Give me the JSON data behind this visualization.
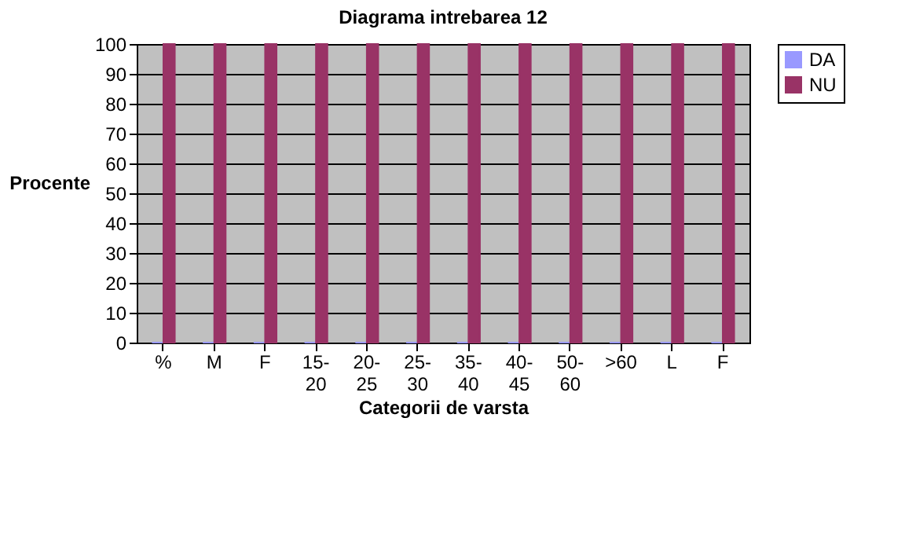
{
  "chart_data": {
    "type": "bar",
    "title": "Diagrama intrebarea 12",
    "xlabel": "Categorii de varsta",
    "ylabel": "Procente",
    "categories": [
      "%",
      "M",
      "F",
      "15-20",
      "20-25",
      "25-30",
      "35-40",
      "40-45",
      "50-60",
      ">60",
      "L",
      "F"
    ],
    "series": [
      {
        "name": "DA",
        "color": "#9999ff",
        "values": [
          0,
          0,
          0,
          0,
          0,
          0,
          0,
          0,
          0,
          0,
          0,
          0
        ]
      },
      {
        "name": "NU",
        "color": "#993366",
        "values": [
          100,
          100,
          100,
          100,
          100,
          100,
          100,
          100,
          100,
          100,
          100,
          100
        ]
      }
    ],
    "ylim": [
      0,
      100
    ],
    "yticks": [
      0,
      10,
      20,
      30,
      40,
      50,
      60,
      70,
      80,
      90,
      100
    ],
    "grid": "y",
    "legend": "right"
  }
}
